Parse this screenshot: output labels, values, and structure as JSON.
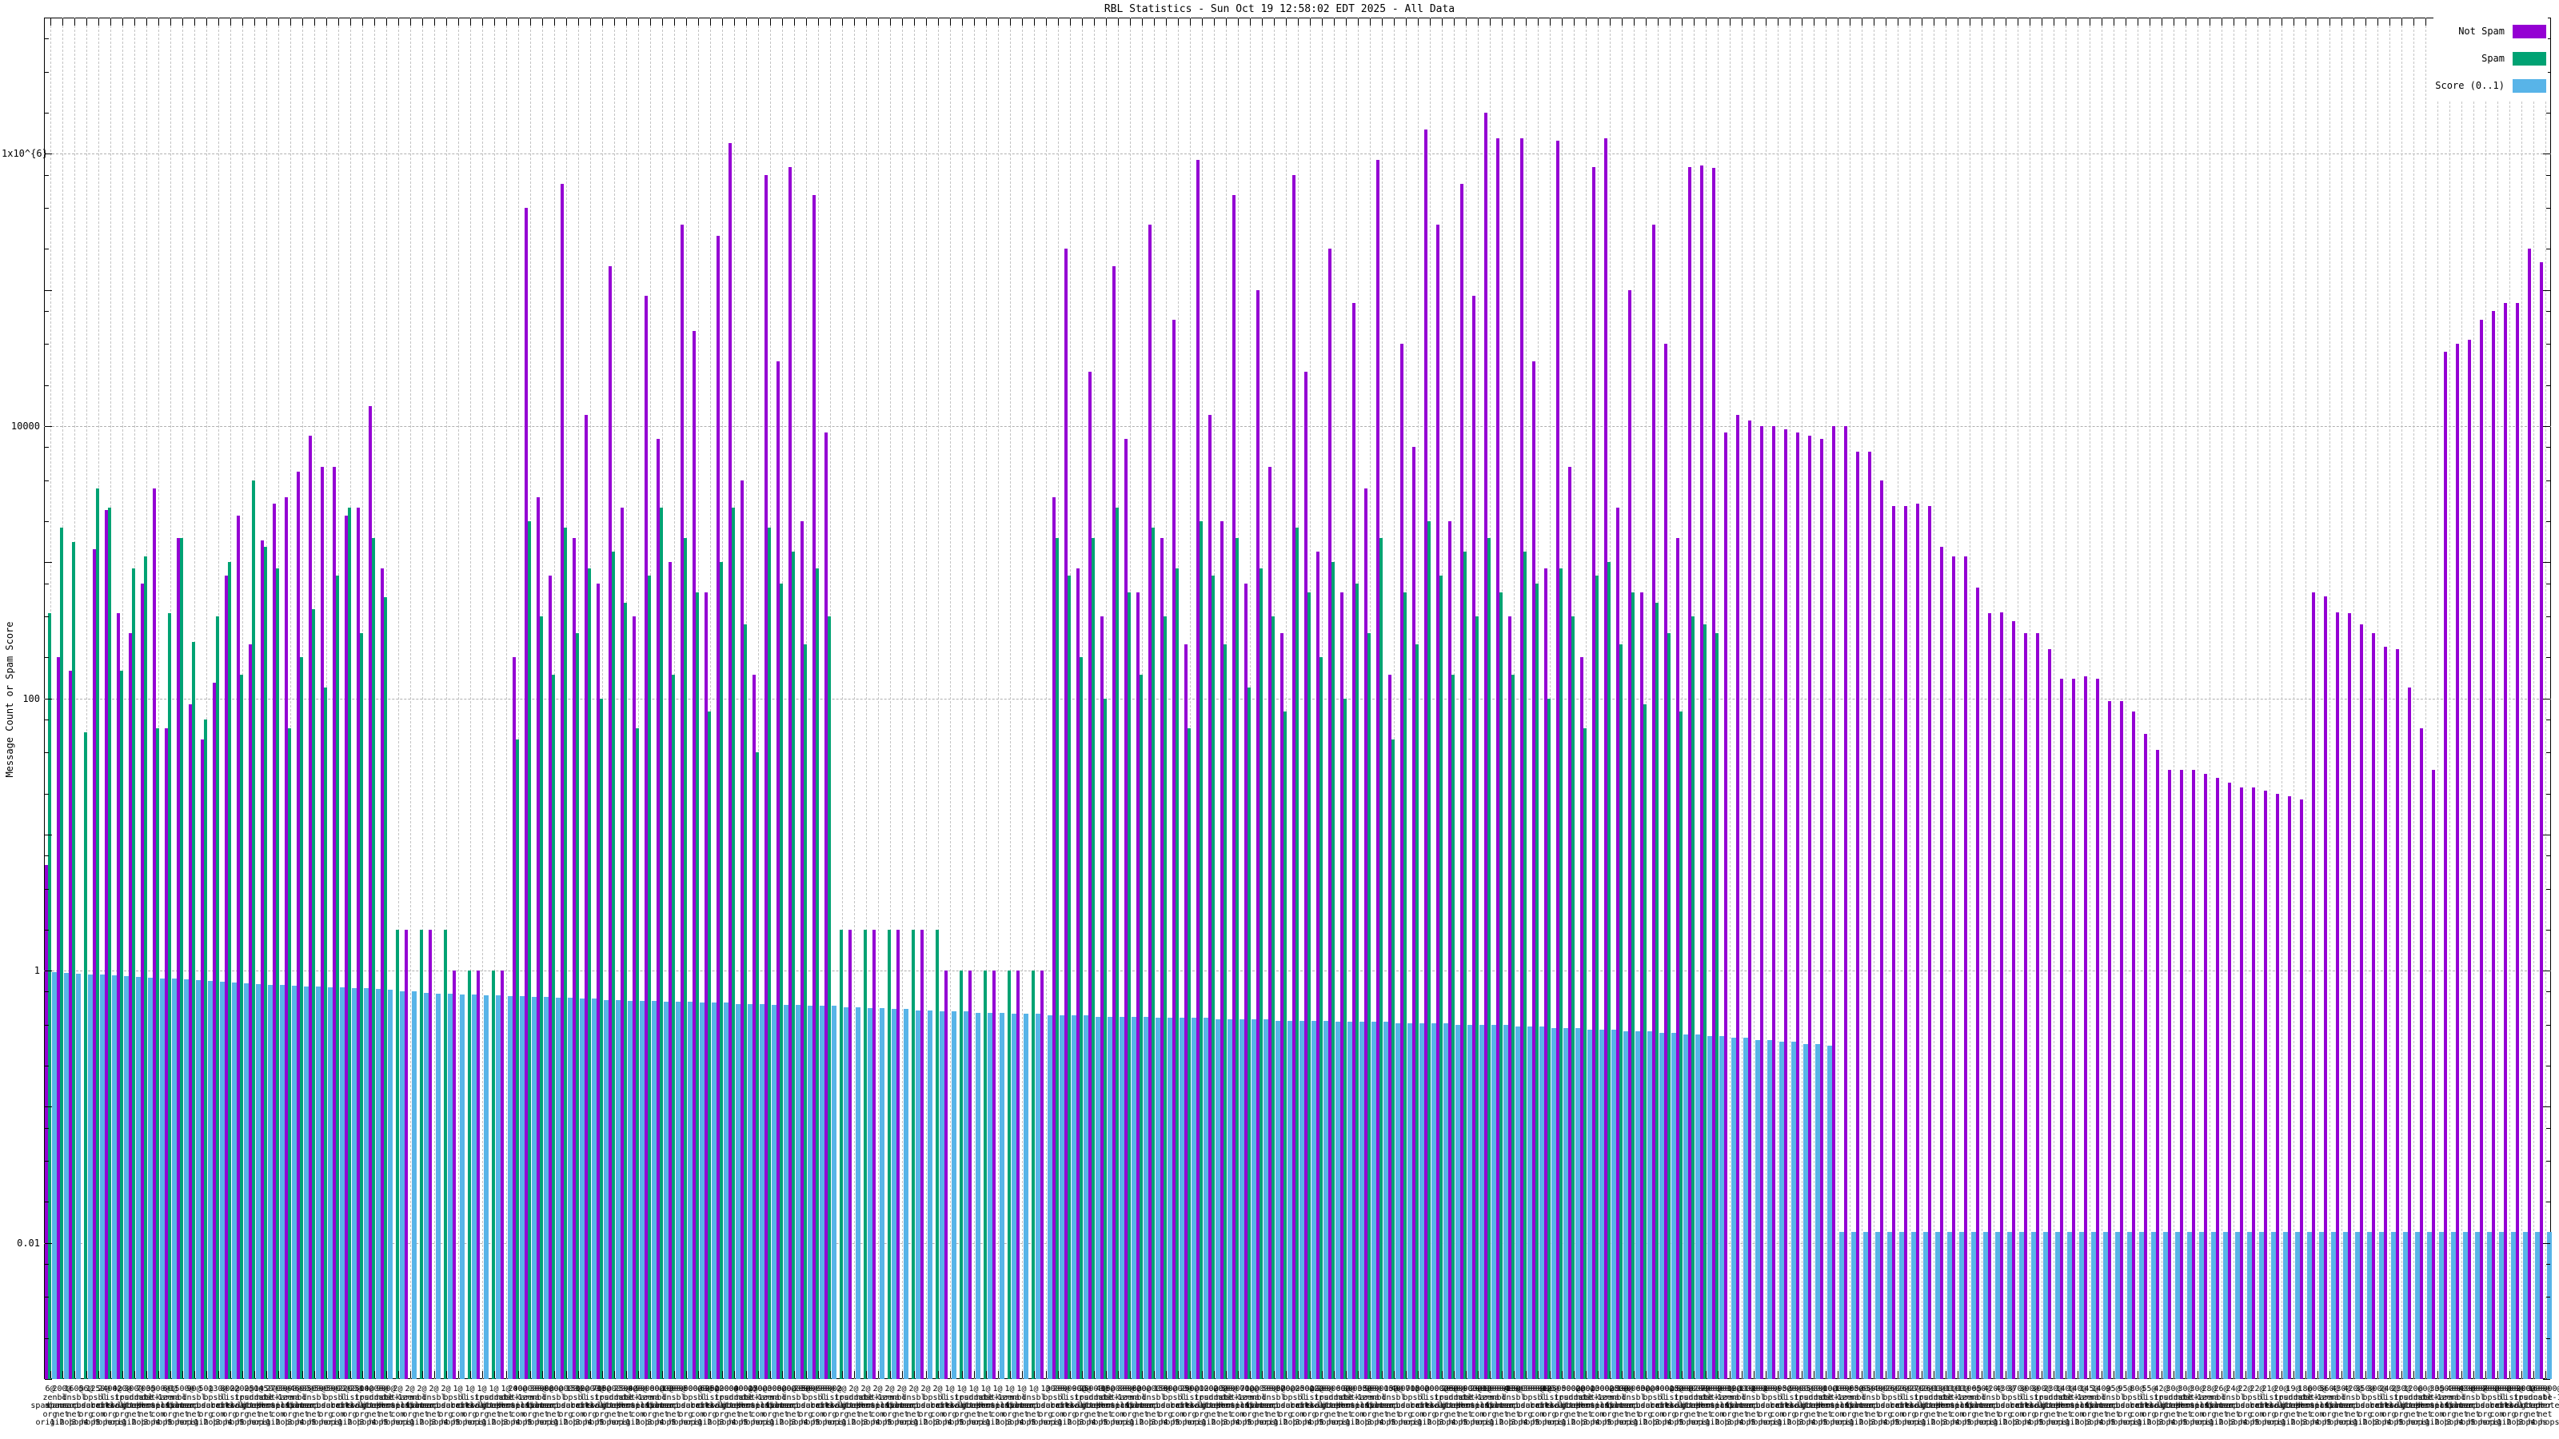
{
  "window": {
    "title": "RBL Statistics - Sun Oct 19 12:58:02 EDT 2025 - All Data"
  },
  "chart_data": {
    "type": "bar",
    "title": "RBL Statistics - Sun Oct 19 12:58:02 EDT 2025 - All Data",
    "xlabel": "",
    "ylabel": "Message Count or Spam Score",
    "y_scale": "log",
    "ylim": [
      0.001,
      10000000
    ],
    "grid": true,
    "legend_position": "top-right",
    "y_ticks": [
      {
        "label": "1x10^{6}",
        "value": 1000000
      },
      {
        "label": "10000",
        "value": 10000
      },
      {
        "label": "100",
        "value": 100
      },
      {
        "label": "1",
        "value": 1
      },
      {
        "label": "0.01",
        "value": 0.01
      }
    ],
    "legend": [
      {
        "label": "Not Spam",
        "series": "not_spam",
        "color": "#9400d3"
      },
      {
        "label": "Spam",
        "series": "spam",
        "color": "#00a273"
      },
      {
        "label": "Score (0..1)",
        "series": "score",
        "color": "#58b4e8"
      }
    ],
    "n_groups": 209,
    "xtic_hosts": [
      "zen.spamhaus.org",
      "bl.spamcop.net",
      "dnsbl.sorbs.net",
      "b.barracudacentral.org",
      "psbl.surriel.com",
      "list.dnswl.org",
      "ips.backscatterer.org",
      "truncate.gbudb.net",
      "dnsbl-1.uceprotect.net",
      "hostkarma.junkemailfilter.com"
    ],
    "xtic_suffixes": [
      "origin",
      "1 hop",
      "2 hops",
      "3 hops",
      "4 hops",
      "5 hops"
    ],
    "series": {
      "not_spam": [
        6,
        200,
        160,
        null,
        1250,
        2400,
        420,
        300,
        700,
        3500,
        60,
        1500,
        90,
        50,
        130,
        800,
        2200,
        250,
        1450,
        2700,
        3000,
        4600,
        8500,
        5000,
        5000,
        2200,
        2500,
        14000,
        900,
        null,
        2,
        null,
        2,
        null,
        1,
        null,
        1,
        null,
        1,
        200,
        400000,
        3000,
        800,
        600000,
        1500,
        12000,
        700,
        150000,
        2500,
        400,
        90000,
        8000,
        1000,
        300000,
        50000,
        600,
        250000,
        1200000,
        4000,
        150,
        700000,
        30000,
        800000,
        2000,
        500000,
        9000,
        null,
        2,
        null,
        2,
        null,
        2,
        null,
        2,
        null,
        1,
        null,
        1,
        null,
        1,
        null,
        1,
        null,
        1,
        3000,
        200000,
        900,
        25000,
        400,
        150000,
        8000,
        600,
        300000,
        1500,
        60000,
        250,
        900000,
        12000,
        2000,
        500000,
        700,
        100000,
        5000,
        300,
        700000,
        25000,
        1200,
        200000,
        600,
        80000,
        3500,
        900000,
        150,
        40000,
        7000,
        1500000,
        300000,
        2000,
        600000,
        90000,
        2000000,
        1300000,
        400,
        1300000,
        30000,
        900,
        1250000,
        5000,
        200,
        800000,
        1300000,
        2500,
        100000,
        600,
        300000,
        40000,
        1500,
        800000,
        820000,
        790000,
        9000,
        12000,
        11000,
        10000,
        10000,
        9500,
        9000,
        8500,
        8000,
        10000,
        10000,
        6500,
        6500,
        4000,
        2600,
        2600,
        2700,
        2600,
        1300,
        1100,
        1100,
        650,
        420,
        430,
        370,
        300,
        300,
        230,
        140,
        140,
        145,
        140,
        95,
        95,
        80,
        55,
        42,
        30,
        30,
        30,
        28,
        26,
        24,
        22,
        22,
        21,
        20,
        19,
        18,
        600,
        560,
        430,
        420,
        350,
        300,
        240,
        230,
        120,
        60,
        30,
        35000,
        40000,
        43000,
        60000,
        70000,
        80000,
        80000,
        200000,
        160000
      ],
      "spam": [
        420,
        1800,
        1400,
        56,
        3500,
        2500,
        160,
        900,
        1100,
        60,
        420,
        1500,
        260,
        70,
        400,
        1000,
        150,
        4000,
        1300,
        900,
        60,
        200,
        450,
        120,
        800,
        2500,
        300,
        1500,
        550,
        2,
        null,
        2,
        null,
        2,
        null,
        1,
        null,
        1,
        null,
        50,
        2000,
        400,
        150,
        1800,
        300,
        900,
        100,
        1200,
        500,
        60,
        800,
        2500,
        150,
        1500,
        600,
        80,
        1000,
        2500,
        350,
        40,
        1800,
        700,
        1200,
        250,
        900,
        400,
        2,
        null,
        2,
        null,
        2,
        null,
        2,
        null,
        2,
        null,
        1,
        null,
        1,
        null,
        1,
        null,
        1,
        null,
        1500,
        800,
        200,
        1500,
        100,
        2500,
        600,
        150,
        1800,
        400,
        900,
        60,
        2000,
        800,
        250,
        1500,
        120,
        900,
        400,
        80,
        1800,
        600,
        200,
        1000,
        100,
        700,
        300,
        1500,
        50,
        600,
        250,
        2000,
        800,
        150,
        1200,
        400,
        1500,
        600,
        150,
        1200,
        700,
        100,
        900,
        400,
        60,
        800,
        1000,
        250,
        600,
        90,
        500,
        300,
        80,
        400,
        350,
        300,
        null,
        null,
        null,
        null,
        null,
        null,
        null,
        null,
        null,
        null,
        null,
        null,
        null,
        null,
        null,
        null,
        null,
        null,
        null,
        null,
        null,
        null,
        null,
        null,
        null,
        null,
        null,
        null,
        null,
        null,
        null,
        null,
        null,
        null,
        null,
        null,
        null,
        null,
        null,
        null,
        null,
        null,
        null,
        null,
        null,
        null,
        null,
        null,
        null,
        null,
        null,
        null,
        null,
        null,
        null,
        null,
        null,
        null,
        null,
        null,
        null,
        null,
        null,
        null,
        null,
        null,
        null,
        null,
        null
      ],
      "score": [
        0.97,
        0.96,
        0.95,
        0.94,
        0.93,
        0.92,
        0.91,
        0.9,
        0.89,
        0.88,
        0.87,
        0.86,
        0.85,
        0.84,
        0.83,
        0.82,
        0.81,
        0.8,
        0.79,
        0.78,
        0.77,
        0.76,
        0.76,
        0.75,
        0.75,
        0.74,
        0.74,
        0.73,
        0.72,
        0.7,
        0.7,
        0.69,
        0.68,
        0.68,
        0.67,
        0.67,
        0.66,
        0.66,
        0.65,
        0.65,
        0.64,
        0.64,
        0.63,
        0.63,
        0.62,
        0.62,
        0.61,
        0.61,
        0.6,
        0.6,
        0.6,
        0.59,
        0.59,
        0.59,
        0.58,
        0.58,
        0.58,
        0.57,
        0.57,
        0.57,
        0.56,
        0.56,
        0.56,
        0.55,
        0.55,
        0.55,
        0.54,
        0.54,
        0.53,
        0.53,
        0.52,
        0.52,
        0.51,
        0.51,
        0.5,
        0.5,
        0.5,
        0.49,
        0.49,
        0.49,
        0.48,
        0.48,
        0.48,
        0.47,
        0.47,
        0.47,
        0.47,
        0.46,
        0.46,
        0.46,
        0.46,
        0.46,
        0.45,
        0.45,
        0.45,
        0.45,
        0.45,
        0.44,
        0.44,
        0.44,
        0.44,
        0.44,
        0.43,
        0.43,
        0.43,
        0.43,
        0.43,
        0.42,
        0.42,
        0.42,
        0.42,
        0.42,
        0.41,
        0.41,
        0.41,
        0.41,
        0.41,
        0.4,
        0.4,
        0.4,
        0.4,
        0.4,
        0.39,
        0.39,
        0.39,
        0.38,
        0.38,
        0.38,
        0.37,
        0.37,
        0.37,
        0.36,
        0.36,
        0.36,
        0.35,
        0.35,
        0.34,
        0.34,
        0.33,
        0.33,
        0.32,
        0.32,
        0.31,
        0.31,
        0.3,
        0.3,
        0.29,
        0.29,
        0.28,
        0.012,
        0.012,
        0.012,
        0.012,
        0.012,
        0.012,
        0.012,
        0.012,
        0.012,
        0.012,
        0.012,
        0.012,
        0.012,
        0.012,
        0.012,
        0.012,
        0.012,
        0.012,
        0.012,
        0.012,
        0.012,
        0.012,
        0.012,
        0.012,
        0.012,
        0.012,
        0.012,
        0.012,
        0.012,
        0.012,
        0.012,
        0.012,
        0.012,
        0.012,
        0.012,
        0.012,
        0.012,
        0.012,
        0.012,
        0.012,
        0.012,
        0.012,
        0.012,
        0.012,
        0.012,
        0.012,
        0.012,
        0.012,
        0.012,
        0.012,
        0.012,
        0.012,
        0.012,
        0.012,
        0.012,
        0.012,
        0.012,
        0.012,
        0.012,
        0.012
      ]
    }
  },
  "colors": {
    "background": "#ffffff",
    "axis": "#000000",
    "grid_major": "#b0b0b0",
    "grid_minor": "#c4c4c4",
    "not_spam": "#9400d3",
    "spam": "#00a273",
    "score": "#58b4e8"
  }
}
